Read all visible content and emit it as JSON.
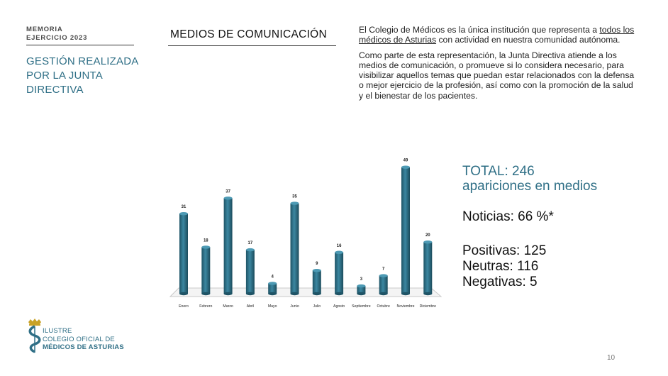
{
  "header": {
    "memoria_line1": "MEMORIA",
    "memoria_line2": "EJERCICIO 2023",
    "section_left_title": "GESTIÓN REALIZADA POR LA JUNTA DIRECTIVA",
    "section_title": "MEDIOS DE COMUNICACIÓN"
  },
  "intro": {
    "p1_before": "El Colegio de Médicos es la única institución que representa a ",
    "p1_link": "todos los médicos de Asturias",
    "p1_after": " con actividad en nuestra comunidad autónoma.",
    "p2": "Como parte de esta representación, la Junta Directiva atiende a los medios de comunicación, o promueve si lo considera necesario, para visibilizar aquellos temas que puedan estar relacionados con la defensa o mejor ejercicio de la profesión, así como con la promoción de la salud y el bienestar de los pacientes."
  },
  "chart_data": {
    "type": "bar",
    "categories": [
      "Enero",
      "Febrero",
      "Marzo",
      "Abril",
      "Mayo",
      "Junio",
      "Julio",
      "Agosto",
      "Septiembre",
      "Octubre",
      "Noviembre",
      "Diciembre"
    ],
    "values": [
      31,
      18,
      37,
      17,
      4,
      35,
      9,
      16,
      3,
      7,
      49,
      20
    ],
    "title": "",
    "xlabel": "",
    "ylabel": "",
    "ylim": [
      0,
      50
    ],
    "grid": false,
    "bar_color": "#2f6f86"
  },
  "stats": {
    "total": "TOTAL: 246",
    "total_sub": "apariciones en medios",
    "noticias": "Noticias: 66 %*",
    "positivas": "Positivas: 125",
    "neutras": "Neutras: 116",
    "negativas": "Negativas: 5"
  },
  "logo": {
    "line1": "ILUSTRE",
    "line2": "COLEGIO OFICIAL DE",
    "line3": "MÉDICOS DE ASTURIAS",
    "icon": "caduceus-crown-icon",
    "crown_color": "#c9a227",
    "brand_color": "#2f6f86"
  },
  "footer": {
    "page_number": "10"
  }
}
